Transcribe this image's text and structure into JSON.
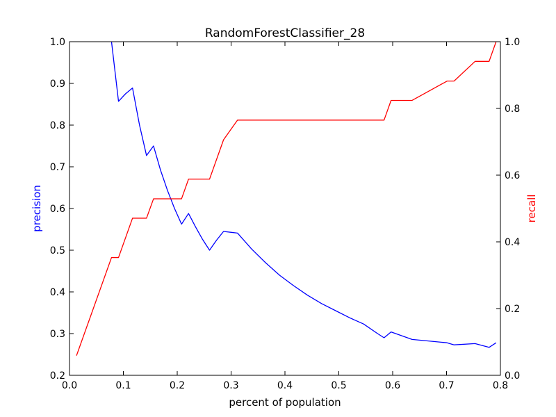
{
  "chart_data": {
    "type": "line",
    "title": "RandomForestClassifier_28",
    "xlabel": "percent of population",
    "ylabel_left": "precision",
    "ylabel_right": "recall",
    "xlim": [
      0.0,
      0.8
    ],
    "ylim_left": [
      0.2,
      1.0
    ],
    "ylim_right": [
      0.0,
      1.0
    ],
    "xticks": [
      "0.0",
      "0.1",
      "0.2",
      "0.3",
      "0.4",
      "0.5",
      "0.6",
      "0.7",
      "0.8"
    ],
    "yticks_left": [
      "0.2",
      "0.3",
      "0.4",
      "0.5",
      "0.6",
      "0.7",
      "0.8",
      "0.9",
      "1.0"
    ],
    "yticks_right": [
      "0.0",
      "0.2",
      "0.4",
      "0.6",
      "0.8",
      "1.0"
    ],
    "grid": false,
    "series": [
      {
        "axis": "left",
        "color": "#0000ff",
        "points": [
          [
            0.078,
            1.0
          ],
          [
            0.091,
            0.857
          ],
          [
            0.104,
            0.875
          ],
          [
            0.117,
            0.889
          ],
          [
            0.13,
            0.8
          ],
          [
            0.143,
            0.727
          ],
          [
            0.156,
            0.75
          ],
          [
            0.169,
            0.692
          ],
          [
            0.182,
            0.643
          ],
          [
            0.195,
            0.6
          ],
          [
            0.208,
            0.5625
          ],
          [
            0.221,
            0.588
          ],
          [
            0.234,
            0.556
          ],
          [
            0.247,
            0.526
          ],
          [
            0.26,
            0.5
          ],
          [
            0.273,
            0.524
          ],
          [
            0.286,
            0.545
          ],
          [
            0.299,
            0.543
          ],
          [
            0.312,
            0.541
          ],
          [
            0.338,
            0.503
          ],
          [
            0.364,
            0.47
          ],
          [
            0.39,
            0.44
          ],
          [
            0.416,
            0.415
          ],
          [
            0.442,
            0.392
          ],
          [
            0.468,
            0.372
          ],
          [
            0.494,
            0.355
          ],
          [
            0.52,
            0.338
          ],
          [
            0.546,
            0.323
          ],
          [
            0.572,
            0.3
          ],
          [
            0.584,
            0.29
          ],
          [
            0.597,
            0.304
          ],
          [
            0.636,
            0.286
          ],
          [
            0.701,
            0.278
          ],
          [
            0.714,
            0.273
          ],
          [
            0.753,
            0.276
          ],
          [
            0.779,
            0.267
          ],
          [
            0.792,
            0.278
          ]
        ]
      },
      {
        "axis": "right",
        "color": "#ff0000",
        "points": [
          [
            0.013,
            0.059
          ],
          [
            0.078,
            0.353
          ],
          [
            0.091,
            0.353
          ],
          [
            0.117,
            0.471
          ],
          [
            0.143,
            0.471
          ],
          [
            0.156,
            0.529
          ],
          [
            0.208,
            0.529
          ],
          [
            0.221,
            0.588
          ],
          [
            0.26,
            0.588
          ],
          [
            0.286,
            0.706
          ],
          [
            0.312,
            0.765
          ],
          [
            0.584,
            0.765
          ],
          [
            0.597,
            0.824
          ],
          [
            0.636,
            0.824
          ],
          [
            0.701,
            0.882
          ],
          [
            0.714,
            0.882
          ],
          [
            0.753,
            0.941
          ],
          [
            0.779,
            0.941
          ],
          [
            0.792,
            1.0
          ]
        ]
      }
    ]
  }
}
